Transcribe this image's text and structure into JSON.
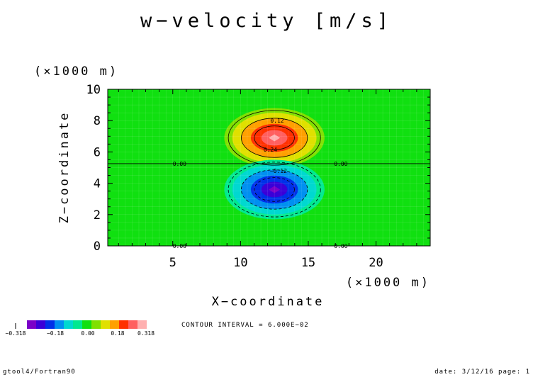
{
  "chart_data": {
    "type": "contour",
    "title": "w−velocity [m/s]",
    "xlabel": "X−coordinate",
    "ylabel": "Z−coordinate",
    "x_unit": "(×1000 m)",
    "y_unit": "(×1000 m)",
    "xlim": [
      0.2,
      24
    ],
    "ylim": [
      0,
      10
    ],
    "x_ticks": [
      {
        "value": 5,
        "label": "5"
      },
      {
        "value": 10,
        "label": "10"
      },
      {
        "value": 15,
        "label": "15"
      },
      {
        "value": 20,
        "label": "20"
      }
    ],
    "y_ticks": [
      {
        "value": 0,
        "label": "0"
      },
      {
        "value": 2,
        "label": "2"
      },
      {
        "value": 4,
        "label": "4"
      },
      {
        "value": 6,
        "label": "6"
      },
      {
        "value": 8,
        "label": "8"
      },
      {
        "value": 10,
        "label": "10"
      }
    ],
    "field": {
      "background": 0.0,
      "updraft": {
        "center_x": 12.5,
        "center_z": 6.9,
        "half_width_x": 3.7,
        "half_height_z": 1.9,
        "peak": 0.318
      },
      "downdraft": {
        "center_x": 12.5,
        "center_z": 3.6,
        "half_width_x": 3.7,
        "half_height_z": 1.9,
        "peak": -0.318
      },
      "zero_line_z": 5.25
    },
    "contour_interval": 0.06,
    "contour_labels": [
      {
        "text": "0.12",
        "x": 12.7,
        "z": 8.0
      },
      {
        "text": "0.24",
        "x": 12.2,
        "z": 6.15
      },
      {
        "text": "−0.12",
        "x": 12.8,
        "z": 4.8
      },
      {
        "text": "0.00",
        "x": 5.5,
        "z": 5.25
      },
      {
        "text": "0.00",
        "x": 17.4,
        "z": 5.25
      },
      {
        "text": "0.00",
        "x": 5.5,
        "z": 0.0
      },
      {
        "text": "0.00",
        "x": 17.4,
        "z": 0.0
      }
    ],
    "colorbar": {
      "colors": [
        "#7b00c8",
        "#3a00d8",
        "#0030e8",
        "#0090f0",
        "#00d8d0",
        "#00e890",
        "#10e010",
        "#80e000",
        "#e0e000",
        "#ffa000",
        "#ff3000",
        "#ff6060",
        "#ffb0b0"
      ],
      "tick_labels": [
        "−0.318",
        "−0.18",
        "0.00",
        "0.18",
        "0.318"
      ]
    }
  },
  "annotations": {
    "contour_interval_text": "CONTOUR INTERVAL = 6.000E−02",
    "footer_left": "gtool4/Fortran90",
    "footer_right": "date: 3/12/16 page: 1"
  }
}
